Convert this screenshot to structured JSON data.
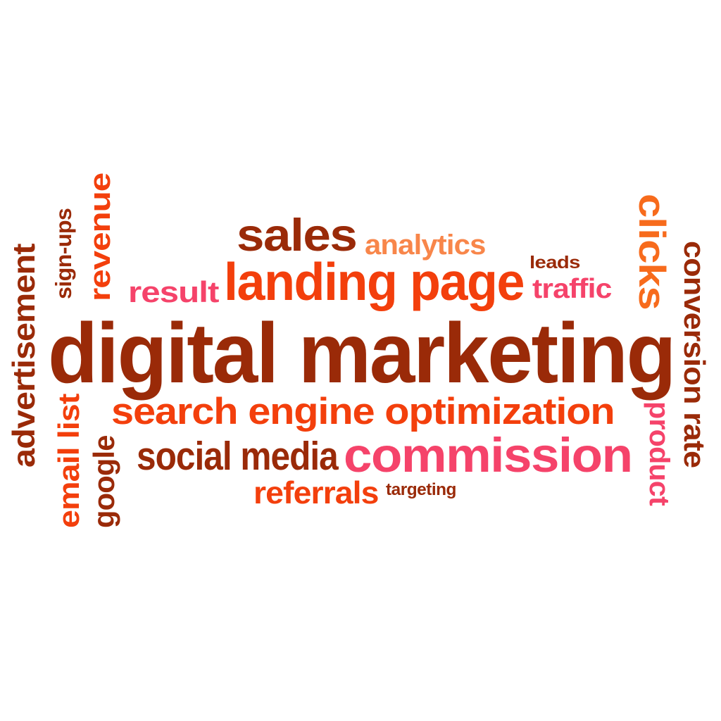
{
  "palette": {
    "dark_red": "#9a2a08",
    "orange_red": "#f33f0c",
    "orange": "#f76b1c",
    "light_orange": "#f8864a",
    "pink": "#f5436a",
    "dark_brown": "#8b2a06"
  },
  "words": [
    {
      "id": "digital-marketing",
      "text": "digital marketing",
      "color_key": "dark_red",
      "orientation": "horizontal"
    },
    {
      "id": "landing-page",
      "text": "landing page",
      "color_key": "orange_red",
      "orientation": "horizontal"
    },
    {
      "id": "search-engine-optimization",
      "text": "search engine optimization",
      "color_key": "orange_red",
      "orientation": "horizontal"
    },
    {
      "id": "commission",
      "text": "commission",
      "color_key": "pink",
      "orientation": "horizontal"
    },
    {
      "id": "sales",
      "text": "sales",
      "color_key": "dark_red",
      "orientation": "horizontal"
    },
    {
      "id": "analytics",
      "text": "analytics",
      "color_key": "light_orange",
      "orientation": "horizontal"
    },
    {
      "id": "leads",
      "text": "leads",
      "color_key": "dark_red",
      "orientation": "horizontal"
    },
    {
      "id": "result",
      "text": "result",
      "color_key": "pink",
      "orientation": "horizontal"
    },
    {
      "id": "traffic",
      "text": "traffic",
      "color_key": "pink",
      "orientation": "horizontal"
    },
    {
      "id": "social-media",
      "text": "social media",
      "color_key": "dark_red",
      "orientation": "horizontal"
    },
    {
      "id": "referrals",
      "text": "referrals",
      "color_key": "orange_red",
      "orientation": "horizontal"
    },
    {
      "id": "targeting",
      "text": "targeting",
      "color_key": "dark_red",
      "orientation": "horizontal"
    },
    {
      "id": "advertisement",
      "text": "advertisement",
      "color_key": "dark_red",
      "orientation": "vertical-up"
    },
    {
      "id": "sign-ups",
      "text": "sign-ups",
      "color_key": "dark_red",
      "orientation": "vertical-up"
    },
    {
      "id": "revenue",
      "text": "revenue",
      "color_key": "orange_red",
      "orientation": "vertical-up"
    },
    {
      "id": "email-list",
      "text": "email list",
      "color_key": "orange_red",
      "orientation": "vertical-up"
    },
    {
      "id": "google",
      "text": "google",
      "color_key": "dark_red",
      "orientation": "vertical-up"
    },
    {
      "id": "clicks",
      "text": "clicks",
      "color_key": "orange",
      "orientation": "vertical-down"
    },
    {
      "id": "conversion-rate",
      "text": "conversion rate",
      "color_key": "dark_red",
      "orientation": "vertical-down"
    },
    {
      "id": "product",
      "text": "product",
      "color_key": "pink",
      "orientation": "vertical-down"
    }
  ]
}
